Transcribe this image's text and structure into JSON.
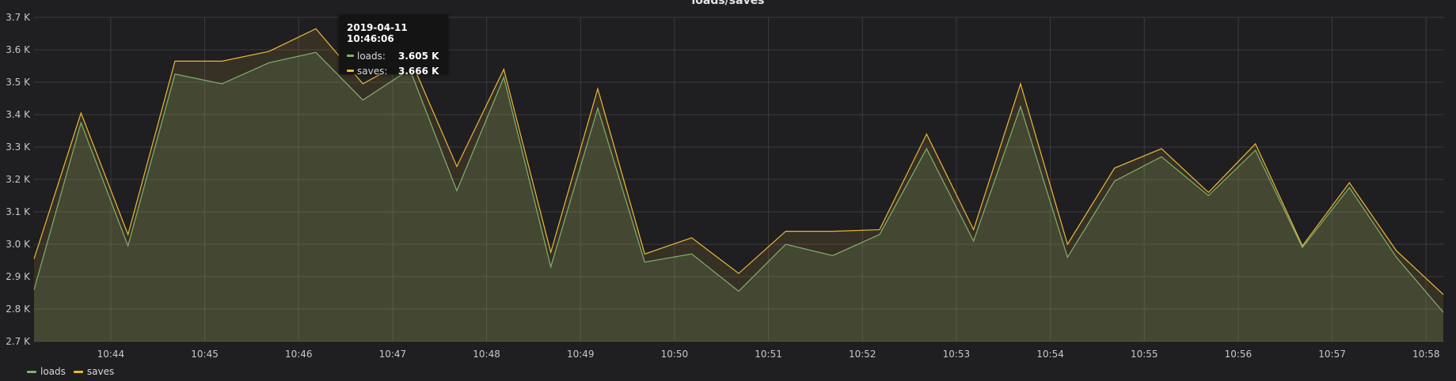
{
  "colors": {
    "background": "#1f1e21",
    "grid": "#3b3b3e",
    "loads": "#7eb26d",
    "saves": "#eab839"
  },
  "chart_data": {
    "type": "area",
    "title": "loads/saves",
    "x_ticks": [
      "10:44",
      "10:45",
      "10:46",
      "10:47",
      "10:48",
      "10:49",
      "10:50",
      "10:51",
      "10:52",
      "10:53",
      "10:54",
      "10:55",
      "10:56",
      "10:57",
      "10:58"
    ],
    "y_ticks": [
      "2.7 K",
      "2.8 K",
      "2.9 K",
      "3.0 K",
      "3.1 K",
      "3.2 K",
      "3.3 K",
      "3.4 K",
      "3.5 K",
      "3.6 K",
      "3.7 K"
    ],
    "ylim": [
      2700,
      3700
    ],
    "x": [
      "10:43:11",
      "10:43:41",
      "10:44:11",
      "10:44:41",
      "10:45:11",
      "10:45:41",
      "10:46:11",
      "10:46:41",
      "10:47:11",
      "10:47:41",
      "10:48:11",
      "10:48:41",
      "10:49:11",
      "10:49:41",
      "10:50:11",
      "10:50:41",
      "10:51:11",
      "10:51:41",
      "10:52:11",
      "10:52:41",
      "10:53:11",
      "10:53:41",
      "10:54:11",
      "10:54:41",
      "10:55:11",
      "10:55:41",
      "10:56:11",
      "10:56:41",
      "10:57:11",
      "10:57:41",
      "10:58:11"
    ],
    "series": [
      {
        "name": "loads",
        "color": "#7eb26d",
        "values": [
          2860,
          3375,
          2995,
          3525,
          3495,
          3560,
          3592,
          3445,
          3540,
          3165,
          3515,
          2930,
          3420,
          2945,
          2970,
          2855,
          3000,
          2965,
          3030,
          3295,
          3010,
          3425,
          2960,
          3195,
          3270,
          3150,
          3290,
          2990,
          3175,
          2960,
          2790
        ]
      },
      {
        "name": "saves",
        "color": "#eab839",
        "values": [
          2955,
          3405,
          3030,
          3565,
          3565,
          3595,
          3665,
          3495,
          3575,
          3240,
          3540,
          2975,
          3480,
          2970,
          3020,
          2910,
          3040,
          3040,
          3045,
          3340,
          3045,
          3495,
          3000,
          3235,
          3295,
          3160,
          3310,
          2995,
          3190,
          2980,
          2845
        ]
      }
    ],
    "grid": true,
    "legend_position": "bottom-left",
    "tooltip": {
      "time": "2019-04-11 10:46:06",
      "rows": [
        {
          "name": "loads:",
          "value": "3.605 K",
          "color": "#7eb26d"
        },
        {
          "name": "saves:",
          "value": "3.666 K",
          "color": "#eab839"
        }
      ]
    },
    "legend": [
      {
        "name": "loads",
        "color": "#7eb26d"
      },
      {
        "name": "saves",
        "color": "#eab839"
      }
    ]
  }
}
